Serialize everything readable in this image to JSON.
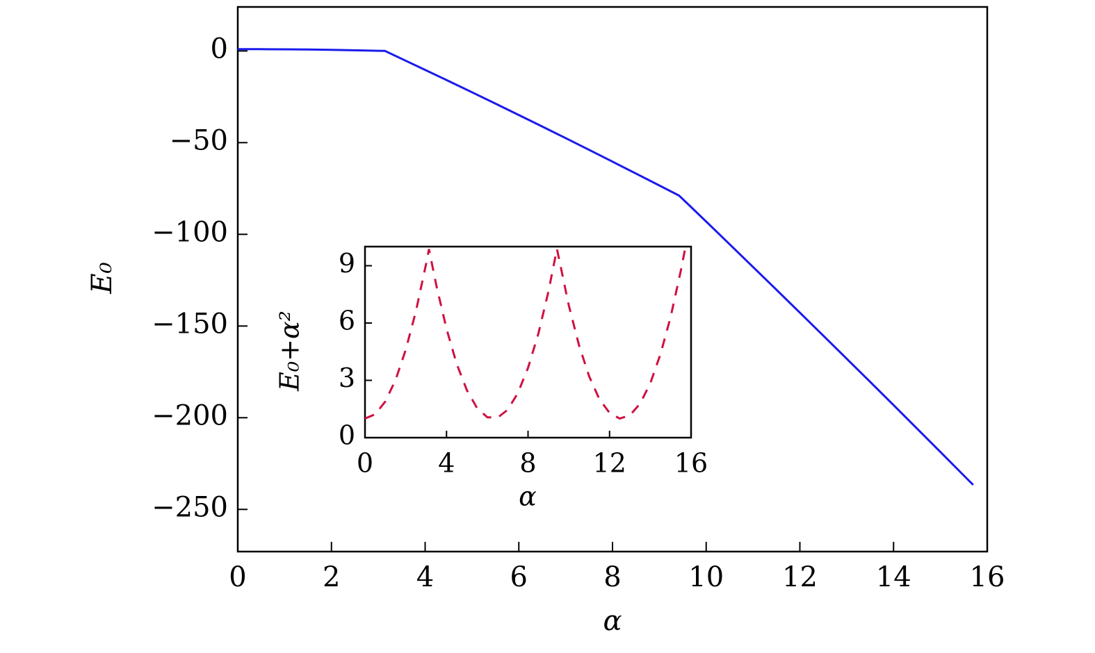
{
  "chart_data": [
    {
      "type": "line",
      "xlabel": "α",
      "ylabel": "E₀",
      "color": "#1a1aee",
      "x": [
        0,
        0.5,
        1,
        1.5,
        2,
        2.5,
        3,
        3.14,
        3.5,
        4,
        4.5,
        5,
        5.5,
        6,
        6.5,
        7,
        7.5,
        8,
        8.5,
        9,
        9.42,
        9.5,
        10,
        10.5,
        11,
        11.5,
        12,
        12.5,
        13,
        13.5,
        14,
        14.5,
        15,
        15.5,
        15.7
      ],
      "values": [
        1,
        0.975,
        0.9,
        0.775,
        0.6,
        0.375,
        0.1,
        0.01,
        -4.28,
        -10.31,
        -16.39,
        -22.52,
        -28.7,
        -34.93,
        -41.21,
        -47.54,
        -53.92,
        -60.35,
        -66.83,
        -73.36,
        -78.86,
        -80.79,
        -93.07,
        -105.41,
        -117.79,
        -130.23,
        -142.71,
        -155.25,
        -167.83,
        -180.47,
        -193.15,
        -205.88,
        -218.67,
        -231.5,
        -236.65
      ],
      "xlim": [
        0,
        16
      ],
      "xticks": [
        0,
        2,
        4,
        6,
        8,
        10,
        12,
        14,
        16
      ],
      "ylim": [
        -273,
        24
      ],
      "yticks": [
        0,
        {
          "value": -50,
          "label": "−50"
        },
        {
          "value": -100,
          "label": "−100"
        },
        {
          "value": -150,
          "label": "−150"
        },
        {
          "value": -200,
          "label": "−200"
        },
        {
          "value": -250,
          "label": "−250"
        }
      ]
    },
    {
      "type": "line",
      "xlabel": "α",
      "ylabel": "E₀+α²",
      "color": "#d01040",
      "dashed": true,
      "x": [
        0,
        0.5,
        1,
        1.5,
        2,
        2.5,
        3,
        3.14,
        3.5,
        4,
        4.5,
        5,
        5.5,
        6,
        6.5,
        7,
        7.5,
        8,
        8.5,
        9,
        9.42,
        9.5,
        10,
        10.5,
        11,
        11.5,
        12,
        12.5,
        13,
        13.5,
        14,
        14.5,
        15,
        15.5,
        15.7
      ],
      "values": [
        1,
        1.225,
        1.9,
        3.025,
        4.6,
        6.625,
        9.1,
        9.87,
        7.97,
        5.69,
        3.86,
        2.48,
        1.55,
        1.07,
        1.04,
        1.46,
        2.33,
        3.65,
        5.42,
        7.64,
        9.88,
        9.46,
        6.93,
        4.84,
        3.21,
        2.02,
        1.29,
        1.0,
        1.17,
        1.78,
        2.85,
        4.37,
        6.33,
        8.75,
        9.84
      ],
      "xlim": [
        0,
        16
      ],
      "xticks": [
        0,
        4,
        8,
        12,
        16
      ],
      "ylim": [
        0,
        10
      ],
      "yticks": [
        0,
        3,
        6,
        9
      ]
    }
  ]
}
